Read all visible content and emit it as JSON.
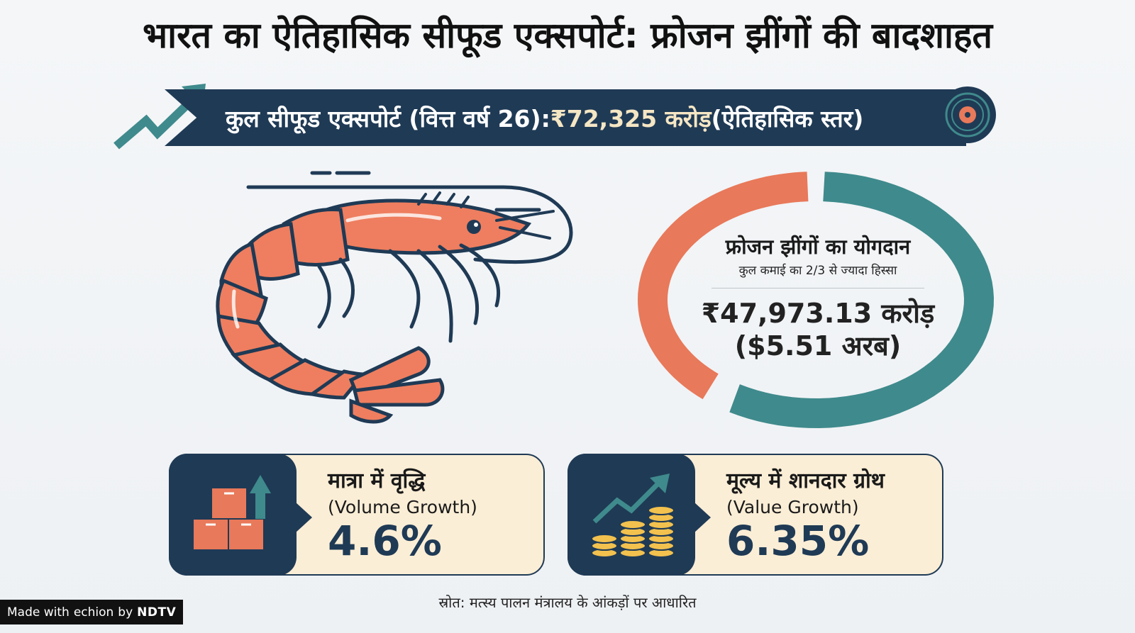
{
  "title": "भारत का ऐतिहासिक सीफूड एक्सपोर्ट: फ्रोजन झींगों की बादशाहत",
  "banner": {
    "label": "कुल सीफूड एक्सपोर्ट (वित्त वर्ष 26): ",
    "amount": "₹72,325 करोड़",
    "note": " (ऐतिहासिक स्तर)"
  },
  "donut": {
    "heading": "फ्रोजन झींगों का योगदान",
    "subheading": "कुल कमाई का 2/3 से ज्यादा हिस्सा",
    "value_inr": "₹47,973.13 करोड़",
    "value_usd": "($5.51 अरब)",
    "share_fraction": 0.66
  },
  "cards": {
    "volume": {
      "heading": "मात्रा में वृद्धि",
      "subheading": "(Volume Growth)",
      "value": "4.6%"
    },
    "value": {
      "heading": "मूल्य में शानदार ग्रोथ",
      "subheading": "(Value Growth)",
      "value": "6.35%"
    }
  },
  "source": "स्रोत: मत्स्य पालन मंत्रालय के आंकड़ों पर आधारित",
  "watermark": {
    "prefix": "Made with",
    "app": "echion",
    "by": "by",
    "brand": "NDTV"
  },
  "colors": {
    "navy": "#1f3a55",
    "teal": "#3f8a8c",
    "coral": "#e8795a",
    "cream": "#fbeed6"
  }
}
